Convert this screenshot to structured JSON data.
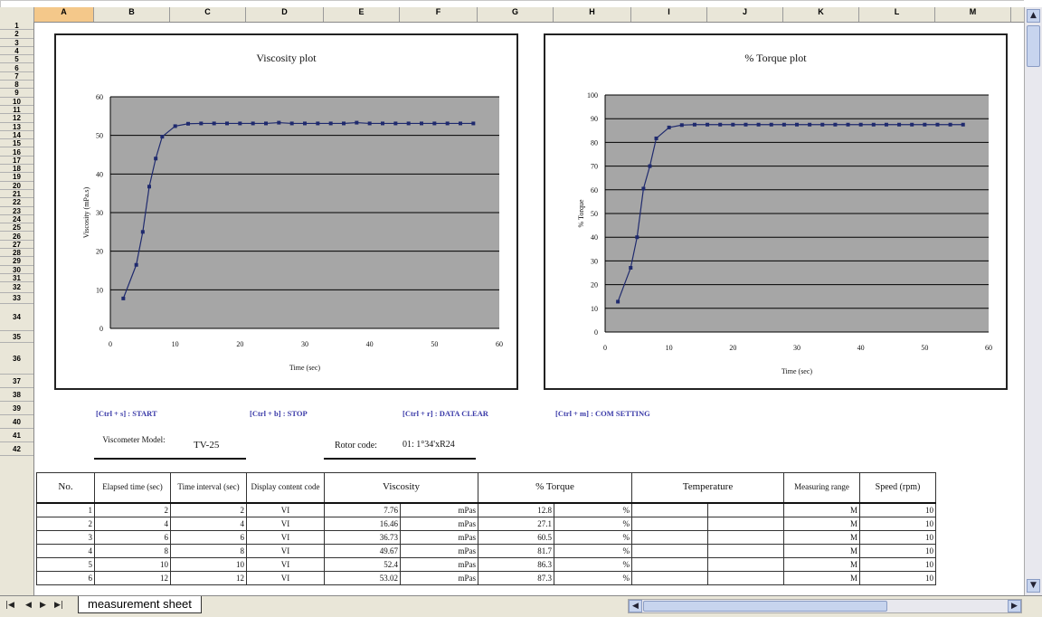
{
  "columns": [
    "A",
    "B",
    "C",
    "D",
    "E",
    "F",
    "G",
    "H",
    "I",
    "J",
    "K",
    "L",
    "M"
  ],
  "rows": [
    "1",
    "2",
    "3",
    "4",
    "5",
    "6",
    "7",
    "8",
    "9",
    "10",
    "11",
    "12",
    "13",
    "14",
    "15",
    "16",
    "17",
    "18",
    "19",
    "20",
    "21",
    "22",
    "23",
    "24",
    "25",
    "26",
    "27",
    "28",
    "29",
    "30",
    "31",
    "32",
    "33",
    "34",
    "35",
    "36",
    "37",
    "38",
    "39",
    "40",
    "41",
    "42"
  ],
  "shortcuts": {
    "start": "[Ctrl + s] : START",
    "stop": "[Ctrl + b] : STOP",
    "clear": "[Ctrl + r] : DATA CLEAR",
    "com": "[Ctrl + m] : COM SETTING"
  },
  "info": {
    "viscometer_label": "Viscometer Model:",
    "viscometer_value": "TV-25",
    "rotor_label": "Rotor code:",
    "rotor_value": "01: 1°34'xR24"
  },
  "table": {
    "headers": [
      "No.",
      "Elapsed time (sec)",
      "Time interval (sec)",
      "Display content code",
      "Viscosity",
      "% Torque",
      "Temperature",
      "Measuring range",
      "Speed (rpm)"
    ],
    "rows": [
      {
        "no": "1",
        "elapsed": "2",
        "interval": "2",
        "code": "VI",
        "visc": "7.76",
        "visc_unit": "mPas",
        "torque": "12.8",
        "torque_unit": "%",
        "range": "M",
        "speed": "10"
      },
      {
        "no": "2",
        "elapsed": "4",
        "interval": "4",
        "code": "VI",
        "visc": "16.46",
        "visc_unit": "mPas",
        "torque": "27.1",
        "torque_unit": "%",
        "range": "M",
        "speed": "10"
      },
      {
        "no": "3",
        "elapsed": "6",
        "interval": "6",
        "code": "VI",
        "visc": "36.73",
        "visc_unit": "mPas",
        "torque": "60.5",
        "torque_unit": "%",
        "range": "M",
        "speed": "10"
      },
      {
        "no": "4",
        "elapsed": "8",
        "interval": "8",
        "code": "VI",
        "visc": "49.67",
        "visc_unit": "mPas",
        "torque": "81.7",
        "torque_unit": "%",
        "range": "M",
        "speed": "10"
      },
      {
        "no": "5",
        "elapsed": "10",
        "interval": "10",
        "code": "VI",
        "visc": "52.4",
        "visc_unit": "mPas",
        "torque": "86.3",
        "torque_unit": "%",
        "range": "M",
        "speed": "10"
      },
      {
        "no": "6",
        "elapsed": "12",
        "interval": "12",
        "code": "VI",
        "visc": "53.02",
        "visc_unit": "mPas",
        "torque": "87.3",
        "torque_unit": "%",
        "range": "M",
        "speed": "10"
      }
    ]
  },
  "sheet_tab": "measurement sheet",
  "colors": {
    "plot_bg": "#a6a6a6",
    "series": "#1f2a6e",
    "selected_col": "#f4c88a",
    "header_bg": "#e9e6d8"
  },
  "chart_data": [
    {
      "type": "line",
      "title": "Viscosity plot",
      "xlabel": "Time (sec)",
      "ylabel": "Viscosity (mPa.s)",
      "xlim": [
        0,
        60
      ],
      "ylim": [
        0,
        60
      ],
      "xticks": [
        "0",
        "10",
        "20",
        "30",
        "40",
        "50",
        "60"
      ],
      "yticks": [
        "0",
        "10",
        "20",
        "30",
        "40",
        "50",
        "60"
      ],
      "grid": true,
      "x": [
        2,
        4,
        5,
        6,
        7,
        8,
        10,
        12,
        14,
        16,
        18,
        20,
        22,
        24,
        26,
        28,
        30,
        32,
        34,
        36,
        38,
        40,
        42,
        44,
        46,
        48,
        50,
        52,
        54,
        56
      ],
      "y": [
        7.76,
        16.46,
        25,
        36.73,
        44,
        49.67,
        52.4,
        53.02,
        53.1,
        53.1,
        53.1,
        53.1,
        53.1,
        53.1,
        53.3,
        53.1,
        53.1,
        53.1,
        53.1,
        53.1,
        53.3,
        53.1,
        53.1,
        53.1,
        53.1,
        53.1,
        53.1,
        53.1,
        53.1,
        53.1
      ]
    },
    {
      "type": "line",
      "title": "% Torque plot",
      "xlabel": "Time (sec)",
      "ylabel": "% Torque",
      "xlim": [
        0,
        60
      ],
      "ylim": [
        0,
        100
      ],
      "xticks": [
        "0",
        "10",
        "20",
        "30",
        "40",
        "50",
        "60"
      ],
      "yticks": [
        "0",
        "10",
        "20",
        "30",
        "40",
        "50",
        "60",
        "70",
        "80",
        "90",
        "100"
      ],
      "grid": true,
      "x": [
        2,
        4,
        5,
        6,
        7,
        8,
        10,
        12,
        14,
        16,
        18,
        20,
        22,
        24,
        26,
        28,
        30,
        32,
        34,
        36,
        38,
        40,
        42,
        44,
        46,
        48,
        50,
        52,
        54,
        56
      ],
      "y": [
        12.8,
        27.1,
        40,
        60.5,
        70,
        81.7,
        86.3,
        87.3,
        87.5,
        87.5,
        87.5,
        87.5,
        87.5,
        87.5,
        87.5,
        87.5,
        87.5,
        87.5,
        87.5,
        87.5,
        87.5,
        87.5,
        87.5,
        87.5,
        87.5,
        87.5,
        87.5,
        87.5,
        87.5,
        87.5
      ]
    }
  ]
}
